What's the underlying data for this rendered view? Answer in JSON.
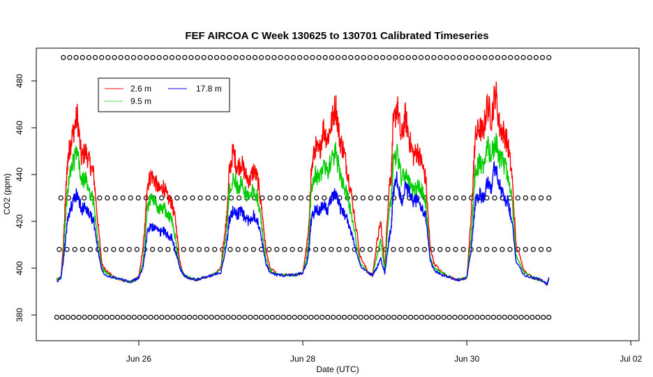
{
  "chart_data": {
    "type": "line",
    "title": "FEF AIRCOA C  Week 130625 to 130701  Calibrated Timeseries",
    "xlabel": "Date (UTC)",
    "ylabel": "CO2 (ppm)",
    "x_unit": "days since Jun 25 00:00 UTC",
    "xlim": [
      -0.25,
      7.1
    ],
    "ylim": [
      369,
      494
    ],
    "x_ticks": [
      {
        "x": 1,
        "label": "Jun 26"
      },
      {
        "x": 3,
        "label": "Jun 28"
      },
      {
        "x": 5,
        "label": "Jun 30"
      },
      {
        "x": 7,
        "label": "Jul 02"
      }
    ],
    "y_ticks": [
      380,
      400,
      420,
      440,
      460,
      480
    ],
    "legend": {
      "position": "top-left",
      "entries": [
        {
          "name": "2.6 m",
          "color": "#ff0000"
        },
        {
          "name": "9.5 m",
          "color": "#00cc00"
        },
        {
          "name": "17.8 m",
          "color": "#0000ff"
        }
      ]
    },
    "series": [
      {
        "name": "2.6 m",
        "color": "#ff0000",
        "x": [
          0.0,
          0.05,
          0.08,
          0.1,
          0.13,
          0.16,
          0.2,
          0.25,
          0.3,
          0.35,
          0.4,
          0.45,
          0.5,
          0.55,
          0.6,
          0.7,
          0.8,
          0.9,
          0.95,
          1.0,
          1.05,
          1.08,
          1.1,
          1.15,
          1.2,
          1.25,
          1.3,
          1.35,
          1.4,
          1.45,
          1.5,
          1.55,
          1.6,
          1.7,
          1.8,
          1.9,
          2.0,
          2.05,
          2.08,
          2.1,
          2.15,
          2.2,
          2.25,
          2.3,
          2.35,
          2.4,
          2.45,
          2.5,
          2.55,
          2.6,
          2.7,
          2.8,
          2.9,
          3.0,
          3.05,
          3.08,
          3.1,
          3.15,
          3.2,
          3.25,
          3.3,
          3.35,
          3.4,
          3.45,
          3.5,
          3.55,
          3.6,
          3.7,
          3.8,
          3.85,
          3.9,
          3.95,
          4.0,
          4.05,
          4.08,
          4.1,
          4.15,
          4.2,
          4.25,
          4.3,
          4.35,
          4.4,
          4.45,
          4.5,
          4.55,
          4.6,
          4.7,
          4.8,
          4.9,
          5.0,
          5.05,
          5.08,
          5.1,
          5.15,
          5.2,
          5.25,
          5.3,
          5.35,
          5.4,
          5.45,
          5.5,
          5.55,
          5.6,
          5.7,
          5.8,
          5.9,
          5.98,
          6.0
        ],
        "y": [
          395,
          396,
          410,
          425,
          445,
          452,
          458,
          465,
          447,
          450,
          445,
          440,
          420,
          402,
          399,
          396,
          395,
          394,
          395,
          396,
          408,
          420,
          435,
          440,
          437,
          433,
          435,
          430,
          428,
          420,
          403,
          397,
          396,
          395,
          396,
          397,
          400,
          415,
          425,
          440,
          450,
          443,
          445,
          440,
          437,
          442,
          438,
          425,
          408,
          400,
          397,
          397,
          397,
          398,
          410,
          420,
          440,
          452,
          449,
          460,
          455,
          462,
          470,
          455,
          450,
          440,
          430,
          405,
          398,
          397,
          410,
          420,
          400,
          435,
          440,
          460,
          470,
          455,
          465,
          455,
          448,
          450,
          445,
          438,
          410,
          402,
          398,
          396,
          395,
          396,
          420,
          440,
          455,
          460,
          458,
          470,
          464,
          476,
          460,
          458,
          453,
          440,
          410,
          399,
          396,
          395,
          393,
          396
        ]
      },
      {
        "name": "9.5 m",
        "color": "#00cc00",
        "x": [
          0.0,
          0.05,
          0.08,
          0.1,
          0.13,
          0.16,
          0.2,
          0.25,
          0.3,
          0.35,
          0.4,
          0.45,
          0.5,
          0.55,
          0.6,
          0.7,
          0.8,
          0.9,
          0.95,
          1.0,
          1.05,
          1.08,
          1.1,
          1.15,
          1.2,
          1.25,
          1.3,
          1.35,
          1.4,
          1.45,
          1.5,
          1.55,
          1.6,
          1.7,
          1.8,
          1.9,
          2.0,
          2.05,
          2.08,
          2.1,
          2.15,
          2.2,
          2.25,
          2.3,
          2.35,
          2.4,
          2.45,
          2.5,
          2.55,
          2.6,
          2.7,
          2.8,
          2.9,
          3.0,
          3.05,
          3.08,
          3.1,
          3.15,
          3.2,
          3.25,
          3.3,
          3.35,
          3.4,
          3.45,
          3.5,
          3.55,
          3.6,
          3.7,
          3.8,
          3.85,
          3.9,
          3.95,
          4.0,
          4.05,
          4.08,
          4.1,
          4.15,
          4.2,
          4.25,
          4.3,
          4.35,
          4.4,
          4.45,
          4.5,
          4.55,
          4.6,
          4.7,
          4.8,
          4.9,
          5.0,
          5.05,
          5.08,
          5.1,
          5.15,
          5.2,
          5.25,
          5.3,
          5.35,
          5.4,
          5.45,
          5.5,
          5.55,
          5.6,
          5.7,
          5.8,
          5.9,
          5.98,
          6.0
        ],
        "y": [
          395,
          396,
          405,
          418,
          432,
          440,
          445,
          450,
          437,
          438,
          433,
          428,
          412,
          400,
          398,
          396,
          395,
          394,
          395,
          396,
          402,
          413,
          425,
          430,
          428,
          425,
          426,
          423,
          421,
          412,
          401,
          397,
          396,
          395,
          396,
          397,
          399,
          410,
          420,
          432,
          440,
          435,
          436,
          432,
          430,
          434,
          430,
          418,
          404,
          399,
          397,
          397,
          397,
          398,
          405,
          415,
          432,
          440,
          438,
          445,
          441,
          446,
          450,
          440,
          436,
          430,
          421,
          402,
          398,
          397,
          405,
          412,
          399,
          425,
          430,
          445,
          450,
          438,
          440,
          436,
          432,
          435,
          433,
          428,
          405,
          400,
          398,
          396,
          395,
          396,
          412,
          428,
          440,
          445,
          443,
          452,
          448,
          455,
          446,
          445,
          440,
          430,
          405,
          398,
          396,
          395,
          393,
          396
        ]
      },
      {
        "name": "17.8 m",
        "color": "#0000ff",
        "x": [
          0.0,
          0.05,
          0.08,
          0.1,
          0.13,
          0.16,
          0.2,
          0.25,
          0.3,
          0.35,
          0.4,
          0.45,
          0.5,
          0.55,
          0.6,
          0.7,
          0.8,
          0.9,
          0.95,
          1.0,
          1.05,
          1.08,
          1.1,
          1.15,
          1.2,
          1.25,
          1.3,
          1.35,
          1.4,
          1.45,
          1.5,
          1.55,
          1.6,
          1.7,
          1.8,
          1.9,
          2.0,
          2.05,
          2.08,
          2.1,
          2.15,
          2.2,
          2.25,
          2.3,
          2.35,
          2.4,
          2.45,
          2.5,
          2.55,
          2.6,
          2.7,
          2.8,
          2.9,
          3.0,
          3.05,
          3.08,
          3.1,
          3.15,
          3.2,
          3.25,
          3.3,
          3.35,
          3.4,
          3.45,
          3.5,
          3.55,
          3.6,
          3.7,
          3.8,
          3.85,
          3.9,
          3.95,
          4.0,
          4.05,
          4.08,
          4.1,
          4.15,
          4.2,
          4.25,
          4.3,
          4.35,
          4.4,
          4.45,
          4.5,
          4.55,
          4.6,
          4.7,
          4.8,
          4.9,
          5.0,
          5.05,
          5.08,
          5.1,
          5.15,
          5.2,
          5.25,
          5.3,
          5.35,
          5.4,
          5.45,
          5.5,
          5.55,
          5.6,
          5.7,
          5.8,
          5.9,
          5.98,
          6.0
        ],
        "y": [
          394,
          396,
          403,
          410,
          420,
          425,
          428,
          432,
          425,
          426,
          423,
          420,
          408,
          399,
          397,
          396,
          395,
          394,
          395,
          396,
          400,
          408,
          415,
          418,
          417,
          415,
          416,
          414,
          413,
          407,
          400,
          397,
          396,
          395,
          396,
          397,
          398,
          406,
          413,
          420,
          425,
          423,
          424,
          421,
          420,
          423,
          420,
          412,
          402,
          398,
          397,
          397,
          397,
          398,
          402,
          410,
          420,
          425,
          424,
          428,
          425,
          429,
          432,
          426,
          424,
          420,
          414,
          401,
          398,
          397,
          400,
          404,
          398,
          412,
          418,
          432,
          438,
          428,
          434,
          432,
          428,
          430,
          425,
          422,
          404,
          399,
          397,
          396,
          395,
          396,
          407,
          418,
          428,
          432,
          430,
          438,
          435,
          445,
          435,
          430,
          428,
          420,
          403,
          397,
          396,
          395,
          393,
          396
        ]
      }
    ],
    "marker_rows": [
      {
        "name": "flag-row-490",
        "y": 490,
        "x_start": 0.08,
        "x_end": 6.0,
        "count": 77
      },
      {
        "name": "flag-row-430",
        "y": 430,
        "x_start": 0.05,
        "x_end": 6.0,
        "count": 64
      },
      {
        "name": "flag-row-408",
        "y": 408,
        "x_start": 0.03,
        "x_end": 6.0,
        "count": 64
      },
      {
        "name": "flag-row-379",
        "y": 379,
        "x_start": 0.0,
        "x_end": 6.0,
        "count": 90
      }
    ]
  }
}
